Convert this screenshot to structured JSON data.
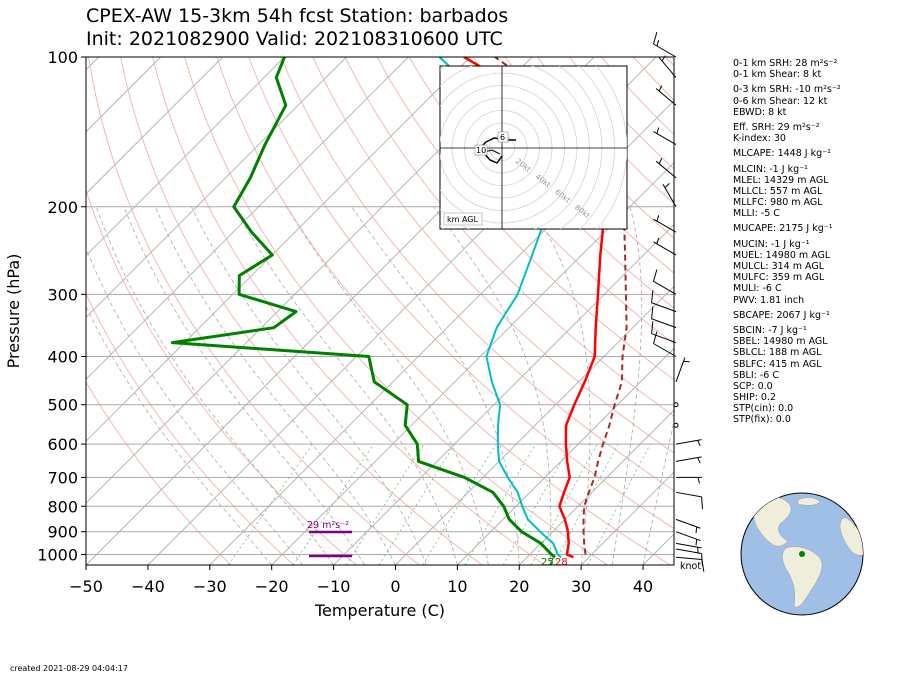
{
  "header": {
    "title_line1": "CPEX-AW 15-3km  54h fcst  Station: barbados",
    "title_line2": "Init: 2021082900  Valid: 202108310600 UTC"
  },
  "footer": {
    "created": "created 2021-08-29 04:04:17"
  },
  "indices": [
    {
      "text": "0-1 km SRH: 28 m²s⁻²",
      "gap": false
    },
    {
      "text": "0-1 km Shear: 8 kt",
      "gap": false
    },
    {
      "text": "0-3 km SRH: -10 m²s⁻²",
      "gap": true
    },
    {
      "text": "0-6 km Shear: 12 kt",
      "gap": false
    },
    {
      "text": "EBWD: 8 kt",
      "gap": false
    },
    {
      "text": "Eff. SRH: 29 m²s⁻²",
      "gap": true
    },
    {
      "text": "K-index: 30",
      "gap": false
    },
    {
      "text": "MLCAPE: 1448 J kg⁻¹",
      "gap": true
    },
    {
      "text": "MLCIN: -1 J kg⁻¹",
      "gap": true
    },
    {
      "text": "MLEL: 14329 m AGL",
      "gap": false
    },
    {
      "text": "MLLCL: 557 m AGL",
      "gap": false
    },
    {
      "text": "MLLFC: 980 m AGL",
      "gap": false
    },
    {
      "text": "MLLI: -5 C",
      "gap": false
    },
    {
      "text": "MUCAPE: 2175 J kg⁻¹",
      "gap": true
    },
    {
      "text": "MUCIN: -1 J kg⁻¹",
      "gap": true
    },
    {
      "text": "MUEL: 14980 m AGL",
      "gap": false
    },
    {
      "text": "MULCL: 314 m AGL",
      "gap": false
    },
    {
      "text": "MULFC: 359 m AGL",
      "gap": false
    },
    {
      "text": "MULI: -6 C",
      "gap": false
    },
    {
      "text": "PWV: 1.81 inch",
      "gap": false
    },
    {
      "text": "SBCAPE: 2067 J kg⁻¹",
      "gap": true
    },
    {
      "text": "SBCIN: -7 J kg⁻¹",
      "gap": true
    },
    {
      "text": "SBEL: 14980 m AGL",
      "gap": false
    },
    {
      "text": "SBLCL: 188 m AGL",
      "gap": false
    },
    {
      "text": "SBLFC: 415 m AGL",
      "gap": false
    },
    {
      "text": "SBLI: -6 C",
      "gap": false
    },
    {
      "text": "SCP: 0.0",
      "gap": false
    },
    {
      "text": "SHIP: 0.2",
      "gap": false
    },
    {
      "text": "STP(cin): 0.0",
      "gap": false
    },
    {
      "text": "STP(fix): 0.0",
      "gap": false
    }
  ],
  "chart_data": {
    "type": "line",
    "xlabel": "Temperature (C)",
    "ylabel": "Pressure (hPa)",
    "xlim": [
      -50,
      45
    ],
    "ylim": [
      1050,
      100
    ],
    "y_scale": "log",
    "xticks": [
      -50,
      -40,
      -30,
      -20,
      -10,
      0,
      10,
      20,
      30,
      40
    ],
    "yticks": [
      100,
      200,
      300,
      400,
      500,
      600,
      700,
      800,
      900,
      1000
    ],
    "grid": true,
    "skew": true,
    "wind_unit": "knot",
    "surface_temp_label": "28",
    "surface_dewpoint_label": "25",
    "surface_theta_label": "7",
    "srh_label": "29 m²s⁻²",
    "colors": {
      "temperature": "#ff0000",
      "dewpoint": "#008000",
      "wetbulb": "#00bfc4",
      "parcel": "#a52a2a",
      "srh_bar": "#800080"
    },
    "series": [
      {
        "name": "temperature",
        "points": [
          [
            27.5,
            1013
          ],
          [
            26,
            1000
          ],
          [
            24.5,
            950
          ],
          [
            22.5,
            900
          ],
          [
            20,
            850
          ],
          [
            17,
            800
          ],
          [
            15.5,
            750
          ],
          [
            14,
            700
          ],
          [
            11,
            650
          ],
          [
            8,
            600
          ],
          [
            5,
            550
          ],
          [
            3,
            500
          ],
          [
            1,
            450
          ],
          [
            -1.5,
            400
          ],
          [
            -6,
            350
          ],
          [
            -11,
            300
          ],
          [
            -17,
            250
          ],
          [
            -24,
            200
          ],
          [
            -31,
            175
          ],
          [
            -40,
            150
          ],
          [
            -50,
            125
          ],
          [
            -62,
            110
          ],
          [
            -71,
            100
          ]
        ]
      },
      {
        "name": "dewpoint",
        "points": [
          [
            24.5,
            1013
          ],
          [
            23.5,
            1000
          ],
          [
            20,
            950
          ],
          [
            15,
            900
          ],
          [
            11,
            850
          ],
          [
            8,
            800
          ],
          [
            4,
            750
          ],
          [
            -3,
            700
          ],
          [
            -13,
            650
          ],
          [
            -16,
            600
          ],
          [
            -21,
            550
          ],
          [
            -24,
            500
          ],
          [
            -33,
            450
          ],
          [
            -38,
            400
          ],
          [
            -72,
            375
          ],
          [
            -58,
            350
          ],
          [
            -57,
            325
          ],
          [
            -69,
            300
          ],
          [
            -72,
            275
          ],
          [
            -70,
            250
          ],
          [
            -77,
            225
          ],
          [
            -84,
            200
          ],
          [
            -86,
            175
          ],
          [
            -89,
            150
          ],
          [
            -92,
            125
          ],
          [
            -98,
            110
          ],
          [
            -100,
            100
          ]
        ]
      },
      {
        "name": "wetbulb",
        "points": [
          [
            25.5,
            1013
          ],
          [
            24.5,
            1000
          ],
          [
            22,
            950
          ],
          [
            18,
            900
          ],
          [
            14,
            850
          ],
          [
            11,
            800
          ],
          [
            8,
            750
          ],
          [
            4,
            700
          ],
          [
            0,
            650
          ],
          [
            -3,
            600
          ],
          [
            -6,
            550
          ],
          [
            -9,
            500
          ],
          [
            -14,
            450
          ],
          [
            -19,
            400
          ],
          [
            -22,
            350
          ],
          [
            -24,
            300
          ],
          [
            -28,
            250
          ],
          [
            -33,
            200
          ],
          [
            -38,
            175
          ],
          [
            -45,
            150
          ],
          [
            -56,
            125
          ],
          [
            -68,
            110
          ],
          [
            -75,
            100
          ]
        ]
      },
      {
        "name": "parcel",
        "points": [
          [
            29,
            1000
          ],
          [
            27,
            950
          ],
          [
            25,
            900
          ],
          [
            23,
            850
          ],
          [
            21,
            800
          ],
          [
            19.5,
            750
          ],
          [
            18,
            700
          ],
          [
            16,
            650
          ],
          [
            14,
            600
          ],
          [
            12,
            550
          ],
          [
            9.5,
            500
          ],
          [
            7,
            450
          ],
          [
            3,
            400
          ],
          [
            -1,
            350
          ],
          [
            -6.5,
            300
          ],
          [
            -13,
            250
          ],
          [
            -21,
            200
          ],
          [
            -28,
            175
          ],
          [
            -37,
            150
          ],
          [
            -48,
            125
          ],
          [
            -58,
            110
          ],
          [
            -66,
            100
          ]
        ]
      }
    ],
    "winds": [
      {
        "p": 1013,
        "speed": 9,
        "dir": 95
      },
      {
        "p": 975,
        "speed": 10,
        "dir": 100
      },
      {
        "p": 950,
        "speed": 5,
        "dir": 100
      },
      {
        "p": 900,
        "speed": 5,
        "dir": 110
      },
      {
        "p": 850,
        "speed": 5,
        "dir": 110
      },
      {
        "p": 750,
        "speed": 10,
        "dir": 100
      },
      {
        "p": 700,
        "speed": 5,
        "dir": 90
      },
      {
        "p": 650,
        "speed": 5,
        "dir": 80
      },
      {
        "p": 600,
        "speed": 5,
        "dir": 80
      },
      {
        "p": 550,
        "speed": 0,
        "dir": 90
      },
      {
        "p": 500,
        "speed": 0,
        "dir": 90
      },
      {
        "p": 450,
        "speed": 5,
        "dir": 20
      },
      {
        "p": 400,
        "speed": 10,
        "dir": 300
      },
      {
        "p": 375,
        "speed": 10,
        "dir": 290
      },
      {
        "p": 350,
        "speed": 10,
        "dir": 290
      },
      {
        "p": 325,
        "speed": 10,
        "dir": 290
      },
      {
        "p": 300,
        "speed": 10,
        "dir": 300
      },
      {
        "p": 250,
        "speed": 5,
        "dir": 300
      },
      {
        "p": 225,
        "speed": 5,
        "dir": 300
      },
      {
        "p": 200,
        "speed": 5,
        "dir": 330
      },
      {
        "p": 175,
        "speed": 5,
        "dir": 310
      },
      {
        "p": 150,
        "speed": 5,
        "dir": 300
      },
      {
        "p": 125,
        "speed": 5,
        "dir": 310
      },
      {
        "p": 110,
        "speed": 5,
        "dir": 320
      },
      {
        "p": 100,
        "speed": 15,
        "dir": 300
      }
    ]
  },
  "hodograph": {
    "unit_label": "km AGL",
    "ring_labels": [
      "20kt",
      "40kt",
      "60kt",
      "80kt"
    ],
    "height_labels": [
      "10",
      "6"
    ]
  },
  "globe": {
    "ocean_color": "#a0bfe6",
    "land_color": "#efeedc",
    "station_color": "#008000"
  }
}
